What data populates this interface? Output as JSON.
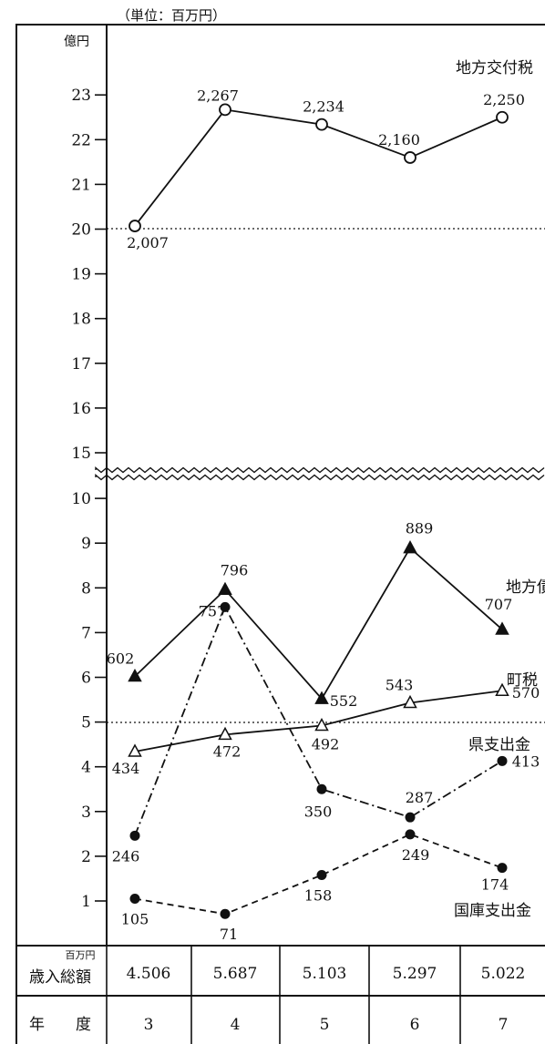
{
  "unit_label": "（単位：百万円）",
  "y_unit_label": "億円",
  "chart_data": {
    "type": "line",
    "categories": [
      "3",
      "4",
      "5",
      "6",
      "7"
    ],
    "y_ticks_upper": [
      "15",
      "16",
      "17",
      "18",
      "19",
      "20",
      "21",
      "22",
      "23"
    ],
    "y_ticks_lower": [
      "1",
      "2",
      "3",
      "4",
      "5",
      "6",
      "7",
      "8",
      "9",
      "10"
    ],
    "axis_break": true,
    "reference_lines": [
      20,
      5
    ],
    "series": [
      {
        "name": "地方交付税",
        "values": [
          2007,
          2267,
          2234,
          2160,
          2250
        ],
        "labels": [
          "2,007",
          "2,267",
          "2,234",
          "2,160",
          "2,250"
        ],
        "marker": "open-circle",
        "line": "solid"
      },
      {
        "name": "地方債",
        "values": [
          602,
          796,
          552,
          889,
          707
        ],
        "labels": [
          "602",
          "796",
          "552",
          "889",
          "707"
        ],
        "marker": "filled-triangle",
        "line": "solid"
      },
      {
        "name": "町税",
        "values": [
          434,
          472,
          492,
          543,
          570
        ],
        "labels": [
          "434",
          "472",
          "492",
          "543",
          "570"
        ],
        "marker": "open-triangle",
        "line": "solid"
      },
      {
        "name": "県支出金",
        "values": [
          246,
          757,
          350,
          287,
          413
        ],
        "labels": [
          "246",
          "757",
          "350",
          "287",
          "413"
        ],
        "marker": "filled-circle",
        "line": "dash-dot"
      },
      {
        "name": "国庫支出金",
        "values": [
          105,
          71,
          158,
          249,
          174
        ],
        "labels": [
          "105",
          "71",
          "158",
          "249",
          "174"
        ],
        "marker": "filled-circle",
        "line": "dashed"
      }
    ]
  },
  "table": {
    "revenue_unit": "百万円",
    "revenue_header": "歳入総額",
    "revenue_values": [
      "4.506",
      "5.687",
      "5.103",
      "5.297",
      "5.022"
    ],
    "year_header": "年　　度",
    "year_values": [
      "3",
      "4",
      "5",
      "6",
      "7"
    ]
  }
}
